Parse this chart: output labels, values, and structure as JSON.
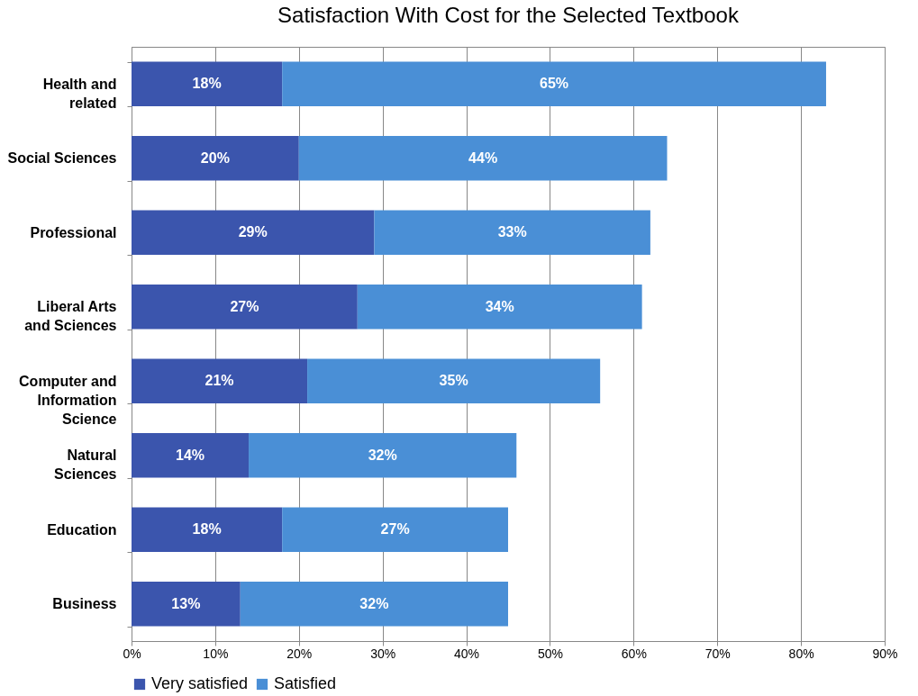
{
  "chart_data": {
    "type": "bar",
    "orientation": "horizontal",
    "stacked": true,
    "title": "Satisfaction With Cost for the Selected Textbook",
    "categories": [
      "Health and related",
      "Social Sciences",
      "Professional",
      "Liberal Arts and Sciences",
      "Computer and Information Science",
      "Natural Sciences",
      "Education",
      "Business"
    ],
    "series": [
      {
        "name": "Very satisfied",
        "color": "#3b55ad",
        "values": [
          18,
          20,
          29,
          27,
          21,
          14,
          18,
          13
        ],
        "value_labels": [
          "18%",
          "20%",
          "29%",
          "27%",
          "21%",
          "14%",
          "18%",
          "13%"
        ]
      },
      {
        "name": "Satisfied",
        "color": "#4a8fd6",
        "values": [
          65,
          44,
          33,
          34,
          35,
          32,
          27,
          32
        ],
        "value_labels": [
          "65%",
          "44%",
          "33%",
          "34%",
          "35%",
          "32%",
          "27%",
          "32%"
        ]
      }
    ],
    "xlim": [
      0,
      90
    ],
    "xticks": [
      {
        "value": 0,
        "label": "0%"
      },
      {
        "value": 10,
        "label": "10%"
      },
      {
        "value": 20,
        "label": "20%"
      },
      {
        "value": 30,
        "label": "30%"
      },
      {
        "value": 40,
        "label": "40%"
      },
      {
        "value": 50,
        "label": "50%"
      },
      {
        "value": 60,
        "label": "60%"
      },
      {
        "value": 70,
        "label": "70%"
      },
      {
        "value": 80,
        "label": "80%"
      },
      {
        "value": 90,
        "label": "90%"
      }
    ],
    "grid": "x",
    "legend": "bottom"
  }
}
